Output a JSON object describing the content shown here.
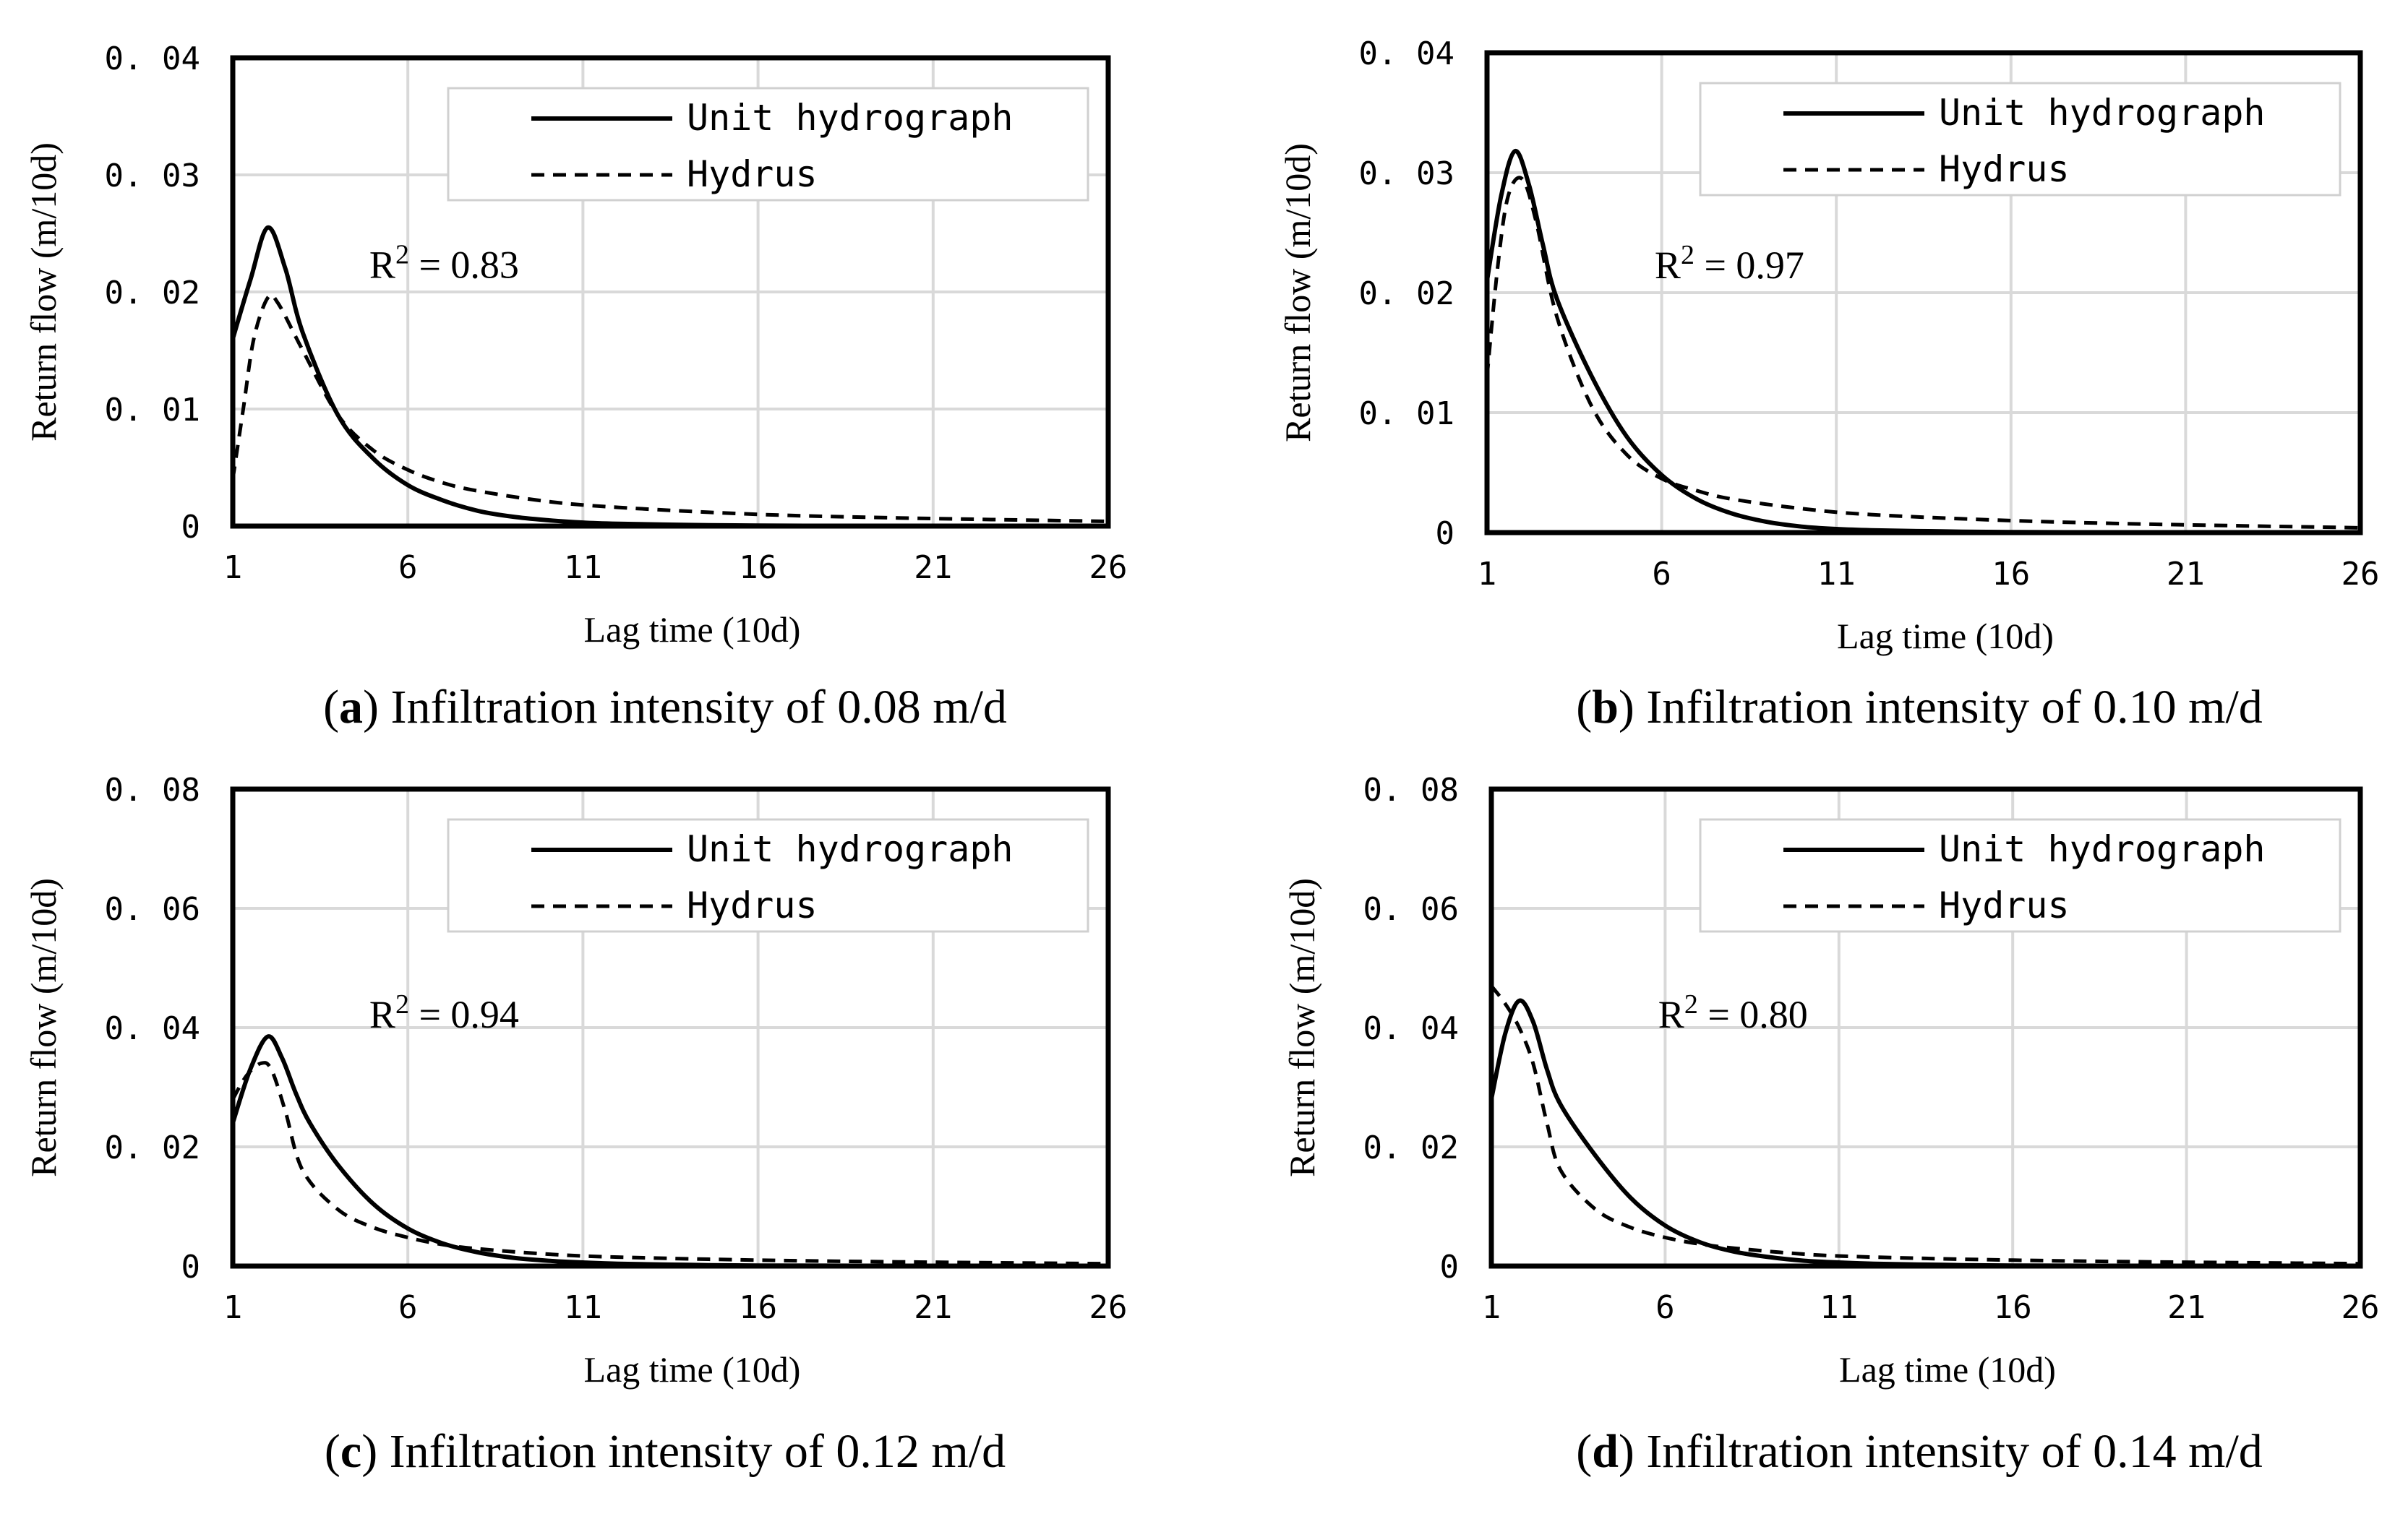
{
  "chart_data": [
    {
      "type": "line",
      "panel_label": "a",
      "caption": "Infiltration intensity of 0.08 m/d",
      "xlabel": "Lag time (10d)",
      "ylabel": "Return flow (m/10d)",
      "xlim": [
        1,
        26
      ],
      "ylim": [
        0,
        0.04
      ],
      "x_ticks": [
        1,
        6,
        11,
        16,
        21,
        26
      ],
      "y_ticks": [
        0,
        0.01,
        0.02,
        0.03,
        0.04
      ],
      "y_tick_labels": [
        "0",
        "0. 01",
        "0. 02",
        "0. 03",
        "0. 04"
      ],
      "annotation": {
        "text": "R",
        "sup": "2",
        "value": " = 0.83"
      },
      "legend": {
        "placement": "top-right",
        "entries": [
          "Unit hydrograph",
          "Hydrus"
        ]
      },
      "series": [
        {
          "name": "Unit hydrograph",
          "style": "solid",
          "x": [
            1,
            1.5,
            2,
            2.5,
            3,
            4,
            5,
            6,
            7,
            8,
            9,
            10,
            11,
            12,
            14,
            16,
            20,
            26
          ],
          "y": [
            0.016,
            0.021,
            0.0255,
            0.022,
            0.0165,
            0.0095,
            0.0058,
            0.0035,
            0.0022,
            0.0013,
            0.0008,
            0.0005,
            0.0003,
            0.0002,
            0.0001,
            5e-05,
            0.0,
            0.0
          ]
        },
        {
          "name": "Hydrus",
          "style": "dashed",
          "x": [
            1,
            1.3,
            1.6,
            2,
            2.3,
            3,
            4,
            5,
            6,
            7,
            8,
            10,
            12,
            16,
            20,
            26
          ],
          "y": [
            0.004,
            0.01,
            0.016,
            0.0195,
            0.019,
            0.015,
            0.0095,
            0.0065,
            0.0048,
            0.0037,
            0.003,
            0.0021,
            0.0016,
            0.001,
            0.0007,
            0.0004
          ]
        }
      ]
    },
    {
      "type": "line",
      "panel_label": "b",
      "caption": "Infiltration intensity of 0.10 m/d",
      "xlabel": "Lag time (10d)",
      "ylabel": "Return flow (m/10d)",
      "xlim": [
        1,
        26
      ],
      "ylim": [
        0,
        0.04
      ],
      "x_ticks": [
        1,
        6,
        11,
        16,
        21,
        26
      ],
      "y_ticks": [
        0,
        0.01,
        0.02,
        0.03,
        0.04
      ],
      "y_tick_labels": [
        "0",
        "0. 01",
        "0. 02",
        "0. 03",
        "0. 04"
      ],
      "annotation": {
        "text": "R",
        "sup": "2",
        "value": " = 0.97"
      },
      "legend": {
        "placement": "top-right",
        "entries": [
          "Unit hydrograph",
          "Hydrus"
        ]
      },
      "series": [
        {
          "name": "Unit hydrograph",
          "style": "solid",
          "x": [
            1,
            1.4,
            1.8,
            2.2,
            2.6,
            3,
            4,
            5,
            6,
            7,
            8,
            9,
            10,
            11,
            12,
            14,
            16,
            20,
            26
          ],
          "y": [
            0.021,
            0.028,
            0.0318,
            0.029,
            0.024,
            0.0195,
            0.013,
            0.008,
            0.0048,
            0.0028,
            0.0016,
            0.0009,
            0.0005,
            0.0003,
            0.0002,
            0.0001,
            5e-05,
            0.0,
            0.0
          ]
        },
        {
          "name": "Hydrus",
          "style": "dashed",
          "x": [
            1,
            1.3,
            1.6,
            2,
            2.4,
            3,
            4,
            5,
            6,
            7,
            8,
            10,
            12,
            16,
            20,
            26
          ],
          "y": [
            0.013,
            0.022,
            0.028,
            0.0295,
            0.026,
            0.018,
            0.0105,
            0.0065,
            0.0045,
            0.0035,
            0.0028,
            0.002,
            0.0015,
            0.001,
            0.0007,
            0.0004
          ]
        }
      ]
    },
    {
      "type": "line",
      "panel_label": "c",
      "caption": "Infiltration intensity of 0.12 m/d",
      "xlabel": "Lag time (10d)",
      "ylabel": "Return flow (m/10d)",
      "xlim": [
        1,
        26
      ],
      "ylim": [
        0,
        0.08
      ],
      "x_ticks": [
        1,
        6,
        11,
        16,
        21,
        26
      ],
      "y_ticks": [
        0,
        0.02,
        0.04,
        0.06,
        0.08
      ],
      "y_tick_labels": [
        "0",
        "0. 02",
        "0. 04",
        "0. 06",
        "0. 08"
      ],
      "annotation": {
        "text": "R",
        "sup": "2",
        "value": " = 0.94"
      },
      "legend": {
        "placement": "top-right",
        "entries": [
          "Unit hydrograph",
          "Hydrus"
        ]
      },
      "series": [
        {
          "name": "Unit hydrograph",
          "style": "solid",
          "x": [
            1,
            1.5,
            2,
            2.4,
            2.8,
            3.2,
            4,
            5,
            6,
            7,
            8,
            9,
            10,
            11,
            12,
            14,
            16,
            20,
            26
          ],
          "y": [
            0.024,
            0.033,
            0.0385,
            0.035,
            0.029,
            0.024,
            0.017,
            0.0105,
            0.0063,
            0.0038,
            0.0023,
            0.0014,
            0.0009,
            0.0006,
            0.0004,
            0.0002,
            0.0001,
            5e-05,
            0.0
          ]
        },
        {
          "name": "Hydrus",
          "style": "dashed",
          "x": [
            1,
            1.4,
            1.8,
            2.1,
            2.5,
            3,
            4,
            5,
            6,
            7,
            8,
            10,
            12,
            16,
            20,
            26
          ],
          "y": [
            0.028,
            0.032,
            0.034,
            0.033,
            0.026,
            0.016,
            0.0095,
            0.0065,
            0.0048,
            0.0036,
            0.0029,
            0.002,
            0.0015,
            0.001,
            0.0007,
            0.0004
          ]
        }
      ]
    },
    {
      "type": "line",
      "panel_label": "d",
      "caption": "Infiltration intensity of 0.14 m/d",
      "xlabel": "Lag time (10d)",
      "ylabel": "Return flow (m/10d)",
      "xlim": [
        1,
        26
      ],
      "ylim": [
        0,
        0.08
      ],
      "x_ticks": [
        1,
        6,
        11,
        16,
        21,
        26
      ],
      "y_ticks": [
        0,
        0.02,
        0.04,
        0.06,
        0.08
      ],
      "y_tick_labels": [
        "0",
        "0. 02",
        "0. 04",
        "0. 06",
        "0. 08"
      ],
      "annotation": {
        "text": "R",
        "sup": "2",
        "value": " = 0.80"
      },
      "legend": {
        "placement": "top-right",
        "entries": [
          "Unit hydrograph",
          "Hydrus"
        ]
      },
      "series": [
        {
          "name": "Unit hydrograph",
          "style": "solid",
          "x": [
            1,
            1.4,
            1.8,
            2.2,
            2.6,
            3,
            4,
            5,
            6,
            7,
            8,
            9,
            10,
            11,
            12,
            14,
            16,
            20,
            26
          ],
          "y": [
            0.028,
            0.039,
            0.0445,
            0.041,
            0.033,
            0.027,
            0.0185,
            0.0115,
            0.0068,
            0.004,
            0.0024,
            0.0015,
            0.0009,
            0.0006,
            0.0004,
            0.0002,
            0.0001,
            5e-05,
            0.0
          ]
        },
        {
          "name": "Hydrus",
          "style": "dashed",
          "x": [
            1,
            1.4,
            1.8,
            2.2,
            2.6,
            3,
            4,
            5,
            6,
            7,
            8,
            10,
            12,
            16,
            20,
            26
          ],
          "y": [
            0.047,
            0.044,
            0.04,
            0.034,
            0.024,
            0.016,
            0.0095,
            0.0065,
            0.0048,
            0.0037,
            0.003,
            0.002,
            0.0015,
            0.001,
            0.0007,
            0.0004
          ]
        }
      ]
    }
  ]
}
